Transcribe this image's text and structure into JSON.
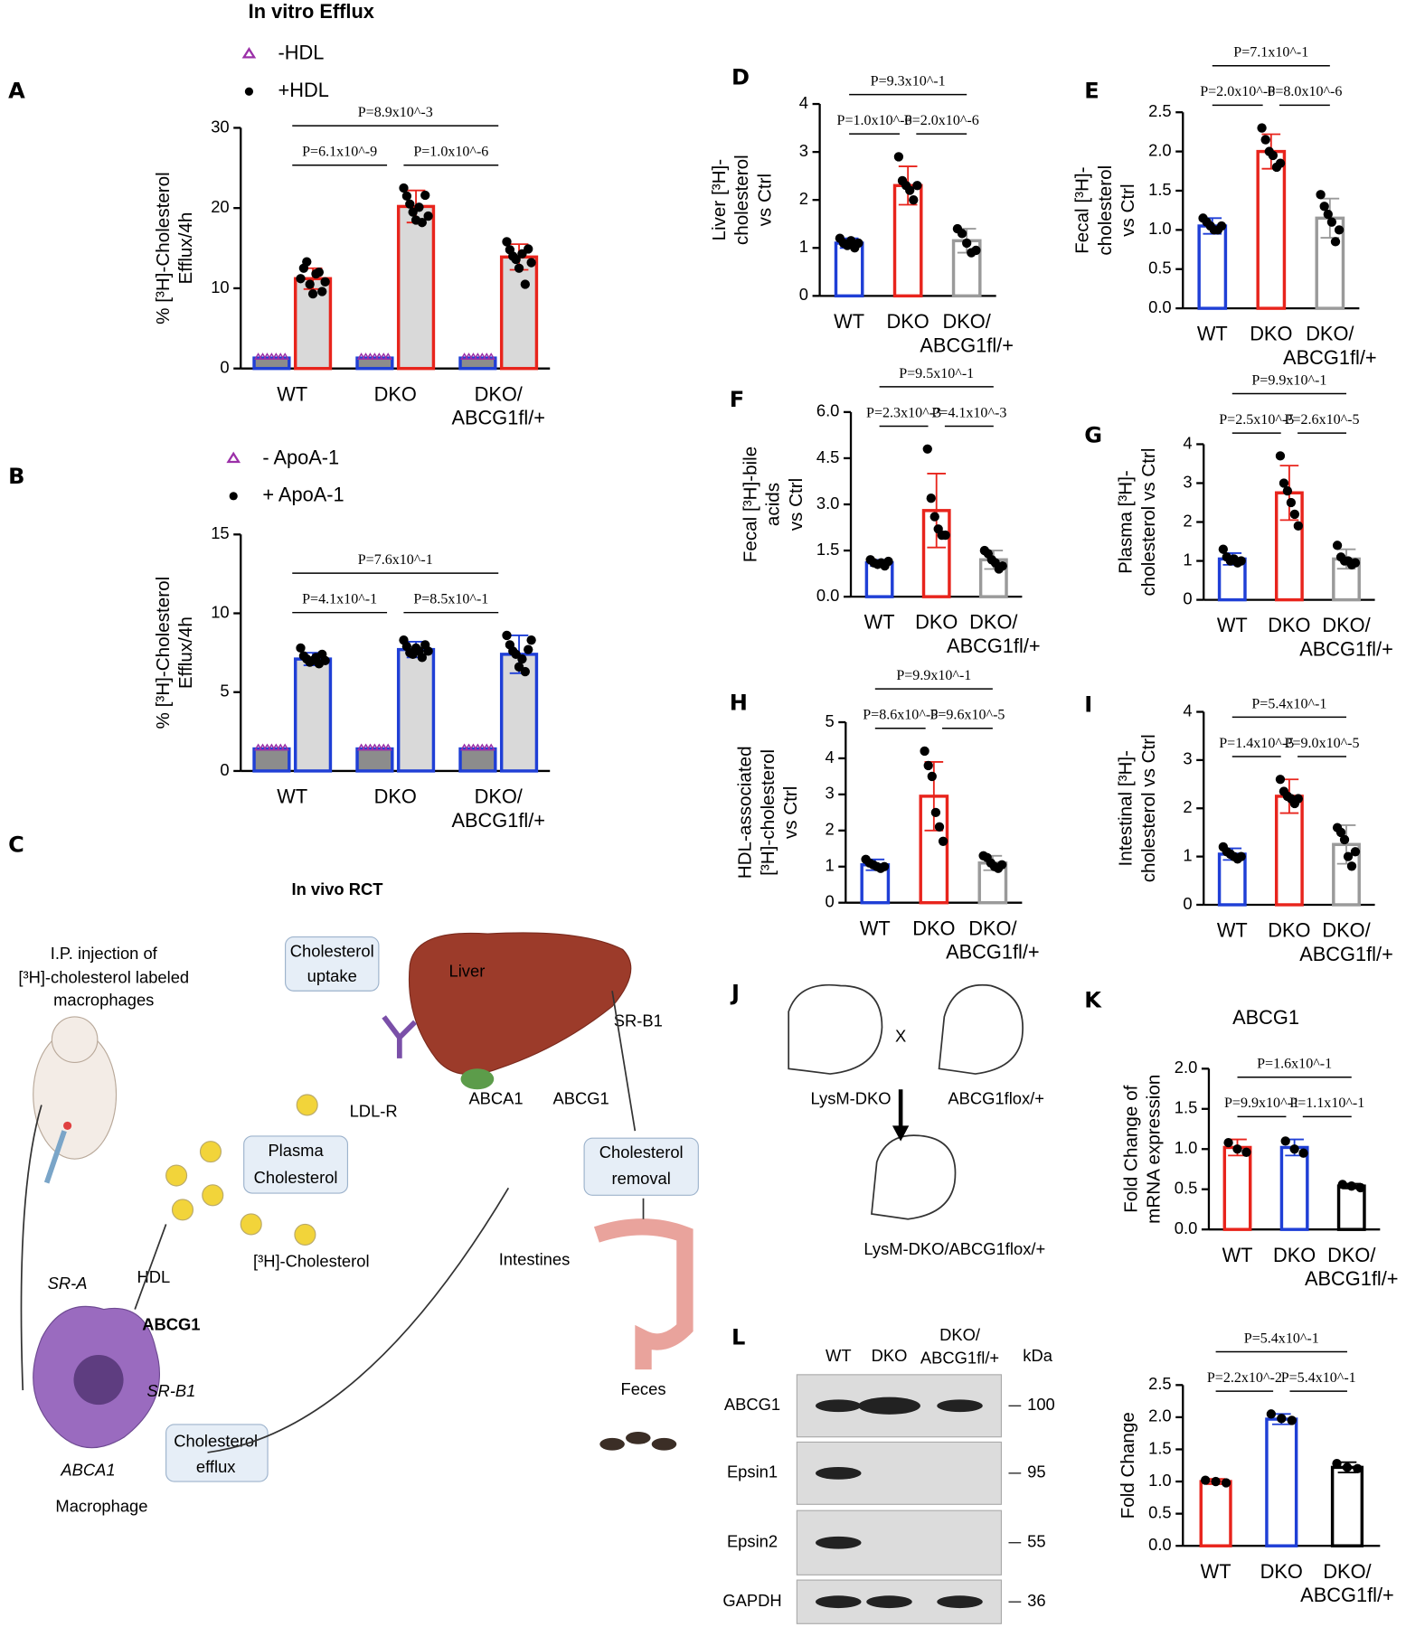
{
  "chart_data": [
    {
      "type": "bar",
      "panel": "A",
      "title": "In vitro Efflux",
      "ylabel": [
        "% [³H]-Cholesterol",
        "Efflux/4h"
      ],
      "categories": [
        [
          "WT"
        ],
        [
          "DKO"
        ],
        [
          "DKO/",
          "ABCG1fl/+"
        ]
      ],
      "ylim": [
        0,
        30
      ],
      "yticks": [
        0,
        10,
        20,
        30
      ],
      "series": [
        {
          "name": "-HDL",
          "label_color": "#000000",
          "marker": "triangle",
          "marker_color": "#9b30a8",
          "fill": "#8c8c8c",
          "colors": [
            "#1f3fd6",
            "#1f3fd6",
            "#1f3fd6"
          ],
          "values": [
            1.3,
            1.3,
            1.3
          ]
        },
        {
          "name": "+HDL",
          "label_color": "#e8241c",
          "marker": "dot",
          "marker_color": "#000000",
          "fill": "#d9d9d9",
          "colors": [
            "#e8241c",
            "#e8241c",
            "#e8241c"
          ],
          "values": [
            11.2,
            20.2,
            13.9
          ],
          "errors": [
            1.3,
            2.0,
            1.6
          ],
          "points": [
            [
              11.2,
              12.5,
              13.3,
              10.5,
              9.3,
              11.8,
              12.0,
              9.6,
              10.8
            ],
            [
              22.5,
              21.5,
              20.5,
              19.5,
              18.5,
              20.1,
              18.2,
              21.6,
              19.0
            ],
            [
              15.8,
              14.8,
              14.0,
              13.6,
              12.5,
              14.3,
              10.5,
              14.9,
              13.2
            ]
          ]
        }
      ],
      "pvalues": [
        "P=6.1x10^-9",
        "P=1.0x10^-6",
        "P=8.9x10^-3"
      ]
    },
    {
      "type": "bar",
      "panel": "B",
      "ylabel": [
        "% [³H]-Cholesterol",
        "Efflux/4h"
      ],
      "categories": [
        [
          "WT"
        ],
        [
          "DKO"
        ],
        [
          "DKO/",
          "ABCG1fl/+"
        ]
      ],
      "ylim": [
        0,
        15
      ],
      "yticks": [
        0,
        5,
        10,
        15
      ],
      "series": [
        {
          "name": "- ApoA-1",
          "label_color": "#000000",
          "marker": "triangle",
          "marker_color": "#9b30a8",
          "fill": "#8c8c8c",
          "colors": [
            "#1f3fd6",
            "#1f3fd6",
            "#1f3fd6"
          ],
          "values": [
            1.4,
            1.4,
            1.4
          ]
        },
        {
          "name": "+ ApoA-1",
          "label_color": "#1f3fd6",
          "marker": "dot",
          "marker_color": "#000000",
          "fill": "#d9d9d9",
          "colors": [
            "#1f3fd6",
            "#1f3fd6",
            "#1f3fd6"
          ],
          "values": [
            7.1,
            7.7,
            7.4
          ],
          "errors": [
            0.4,
            0.5,
            1.2
          ],
          "points": [
            [
              7.8,
              7.3,
              7.1,
              6.9,
              7.0,
              7.2,
              6.8,
              7.4,
              7.0
            ],
            [
              8.3,
              7.9,
              7.5,
              7.4,
              7.8,
              7.6,
              7.2,
              8.0,
              7.6
            ],
            [
              8.6,
              8.0,
              7.6,
              7.4,
              6.6,
              7.1,
              6.3,
              7.7,
              8.3
            ]
          ]
        }
      ],
      "pvalues": [
        "P=4.1x10^-1",
        "P=8.5x10^-1",
        "P=7.6x10^-1"
      ]
    },
    {
      "type": "bar",
      "panel": "D",
      "ylabel": [
        "Liver [³H]-",
        "cholesterol",
        "vs Ctrl"
      ],
      "categories": [
        [
          "WT"
        ],
        [
          "DKO"
        ],
        [
          "DKO/",
          "ABCG1fl/+"
        ]
      ],
      "ylim": [
        0,
        4
      ],
      "yticks": [
        0,
        1,
        2,
        3,
        4
      ],
      "series": [
        {
          "fill": "#ffffff",
          "colors": [
            "#1f3fd6",
            "#e8241c",
            "#9a9a9a"
          ],
          "values": [
            1.1,
            2.3,
            1.15
          ],
          "errors": [
            0.1,
            0.4,
            0.25
          ],
          "points": [
            [
              1.2,
              1.1,
              1.05,
              1.15,
              1.0,
              1.1
            ],
            [
              2.9,
              2.4,
              2.3,
              2.2,
              2.0,
              2.3
            ],
            [
              1.4,
              1.3,
              1.1,
              0.9,
              0.95
            ]
          ]
        }
      ],
      "pvalues": [
        "P=1.0x10^-6",
        "P=2.0x10^-6",
        "P=9.3x10^-1"
      ]
    },
    {
      "type": "bar",
      "panel": "E",
      "ylabel": [
        "Fecal [³H]-",
        "cholesterol",
        "vs Ctrl"
      ],
      "categories": [
        [
          "WT"
        ],
        [
          "DKO"
        ],
        [
          "DKO/",
          "ABCG1fl/+"
        ]
      ],
      "ylim": [
        0,
        2.5
      ],
      "yticks": [
        {
          "value": 0,
          "label": "0.0"
        },
        0.5,
        {
          "value": 1,
          "label": "1.0"
        },
        1.5,
        {
          "value": 2,
          "label": "2.0"
        },
        2.5
      ],
      "series": [
        {
          "fill": "#ffffff",
          "colors": [
            "#1f3fd6",
            "#e8241c",
            "#9a9a9a"
          ],
          "values": [
            1.05,
            2.0,
            1.15
          ],
          "errors": [
            0.1,
            0.22,
            0.25
          ],
          "points": [
            [
              1.15,
              1.1,
              1.05,
              1.0,
              1.0,
              1.05
            ],
            [
              2.3,
              2.15,
              2.0,
              1.95,
              1.8,
              1.85
            ],
            [
              1.45,
              1.3,
              1.2,
              1.1,
              0.85,
              1.0
            ]
          ]
        }
      ],
      "pvalues": [
        "P=2.0x10^-6",
        "P=8.0x10^-6",
        "P=7.1x10^-1"
      ]
    },
    {
      "type": "bar",
      "panel": "F",
      "ylabel": [
        "Fecal [³H]-bile",
        "acids",
        "vs Ctrl"
      ],
      "categories": [
        [
          "WT"
        ],
        [
          "DKO"
        ],
        [
          "DKO/",
          "ABCG1fl/+"
        ]
      ],
      "ylim": [
        0,
        6
      ],
      "yticks": [
        {
          "value": 0,
          "label": "0.0"
        },
        1.5,
        {
          "value": 3,
          "label": "3.0"
        },
        4.5,
        {
          "value": 6,
          "label": "6.0"
        }
      ],
      "series": [
        {
          "fill": "#ffffff",
          "colors": [
            "#1f3fd6",
            "#e8241c",
            "#9a9a9a"
          ],
          "values": [
            1.1,
            2.8,
            1.2
          ],
          "errors": [
            0.1,
            1.2,
            0.3
          ],
          "points": [
            [
              1.2,
              1.1,
              1.05,
              1.1,
              1.0,
              1.15
            ],
            [
              4.8,
              3.2,
              2.6,
              2.2,
              2.0,
              2.0
            ],
            [
              1.5,
              1.4,
              1.2,
              1.1,
              0.9,
              1.0
            ]
          ]
        }
      ],
      "pvalues": [
        "P=2.3x10^-3",
        "P=4.1x10^-3",
        "P=9.5x10^-1"
      ]
    },
    {
      "type": "bar",
      "panel": "G",
      "ylabel": [
        "Plasma  [³H]-",
        "cholesterol vs Ctrl"
      ],
      "categories": [
        [
          "WT"
        ],
        [
          "DKO"
        ],
        [
          "DKO/",
          "ABCG1fl/+"
        ]
      ],
      "ylim": [
        0,
        4
      ],
      "yticks": [
        0,
        1,
        2,
        3,
        4
      ],
      "series": [
        {
          "fill": "#ffffff",
          "colors": [
            "#1f3fd6",
            "#e8241c",
            "#9a9a9a"
          ],
          "values": [
            1.05,
            2.75,
            1.05
          ],
          "errors": [
            0.15,
            0.7,
            0.25
          ],
          "points": [
            [
              1.3,
              1.1,
              1.0,
              1.05,
              0.95,
              1.0
            ],
            [
              3.7,
              3.0,
              2.8,
              2.5,
              2.2,
              1.9
            ],
            [
              1.4,
              1.1,
              1.0,
              1.0,
              0.9,
              0.95
            ]
          ]
        }
      ],
      "pvalues": [
        "P=2.5x10^-5",
        "P=2.6x10^-5",
        "P=9.9x10^-1"
      ]
    },
    {
      "type": "bar",
      "panel": "H",
      "ylabel": [
        "HDL-associated",
        "[³H]-cholesterol",
        "vs Ctrl"
      ],
      "categories": [
        [
          "WT"
        ],
        [
          "DKO"
        ],
        [
          "DKO/",
          "ABCG1fl/+"
        ]
      ],
      "ylim": [
        0,
        5
      ],
      "yticks": [
        0,
        1,
        2,
        3,
        4,
        5
      ],
      "series": [
        {
          "fill": "#ffffff",
          "colors": [
            "#1f3fd6",
            "#e8241c",
            "#9a9a9a"
          ],
          "values": [
            1.05,
            2.95,
            1.1
          ],
          "errors": [
            0.15,
            0.95,
            0.2
          ],
          "points": [
            [
              1.2,
              1.1,
              1.05,
              1.0,
              0.95,
              1.0
            ],
            [
              4.2,
              3.8,
              3.5,
              2.5,
              2.1,
              1.7
            ],
            [
              1.3,
              1.25,
              1.1,
              1.0,
              0.95,
              1.05
            ]
          ]
        }
      ],
      "pvalues": [
        "P=8.6x10^-5",
        "P=9.6x10^-5",
        "P=9.9x10^-1"
      ]
    },
    {
      "type": "bar",
      "panel": "I",
      "ylabel": [
        "Intestinal [³H]-",
        "cholesterol vs Ctrl"
      ],
      "categories": [
        [
          "WT"
        ],
        [
          "DKO"
        ],
        [
          "DKO/",
          "ABCG1fl/+"
        ]
      ],
      "ylim": [
        0,
        4
      ],
      "yticks": [
        0,
        1,
        2,
        3,
        4
      ],
      "series": [
        {
          "fill": "#ffffff",
          "colors": [
            "#1f3fd6",
            "#e8241c",
            "#9a9a9a"
          ],
          "values": [
            1.05,
            2.25,
            1.25
          ],
          "errors": [
            0.12,
            0.35,
            0.4
          ],
          "points": [
            [
              1.2,
              1.1,
              1.05,
              1.0,
              0.95,
              1.0
            ],
            [
              2.6,
              2.35,
              2.25,
              2.2,
              2.1,
              2.2
            ],
            [
              1.6,
              1.5,
              1.35,
              1.0,
              0.8,
              1.1
            ]
          ]
        }
      ],
      "pvalues": [
        "P=1.4x10^-5",
        "P=9.0x10^-5",
        "P=5.4x10^-1"
      ]
    },
    {
      "type": "bar",
      "panel": "K",
      "title": "ABCG1",
      "ylabel": [
        "Fold Change  of",
        "mRNA expression"
      ],
      "categories": [
        [
          "WT"
        ],
        [
          "DKO"
        ],
        [
          "DKO/",
          "ABCG1fl/+"
        ]
      ],
      "ylim": [
        0,
        2
      ],
      "yticks": [
        {
          "value": 0,
          "label": "0.0"
        },
        0.5,
        {
          "value": 1,
          "label": "1.0"
        },
        1.5,
        {
          "value": 2,
          "label": "2.0"
        }
      ],
      "series": [
        {
          "fill": "#ffffff",
          "colors": [
            "#e8241c",
            "#1f3fd6",
            "#000000"
          ],
          "values": [
            1.02,
            1.02,
            0.54
          ],
          "errors": [
            0.1,
            0.1,
            0.03
          ],
          "points": [
            [
              1.08,
              1.0,
              0.96
            ],
            [
              1.1,
              1.0,
              0.95
            ],
            [
              0.56,
              0.54,
              0.52
            ]
          ]
        }
      ],
      "pvalues": [
        "P=9.9x10^-1",
        "P=1.1x10^-1",
        "P=1.6x10^-1"
      ]
    },
    {
      "type": "bar",
      "ylabel": [
        "Fold Change"
      ],
      "categories": [
        [
          "WT"
        ],
        [
          "DKO"
        ],
        [
          "DKO/",
          "ABCG1fl/+"
        ]
      ],
      "ylim": [
        0,
        2.5
      ],
      "yticks": [
        {
          "value": 0,
          "label": "0.0"
        },
        0.5,
        {
          "value": 1,
          "label": "1.0"
        },
        1.5,
        {
          "value": 2,
          "label": "2.0"
        },
        2.5
      ],
      "series": [
        {
          "fill": "#ffffff",
          "colors": [
            "#e8241c",
            "#1f3fd6",
            "#000000"
          ],
          "values": [
            1.0,
            1.97,
            1.22
          ],
          "errors": [
            0.04,
            0.08,
            0.08
          ],
          "points": [
            [
              1.02,
              1.0,
              0.98
            ],
            [
              2.05,
              1.98,
              1.95
            ],
            [
              1.28,
              1.22,
              1.2
            ]
          ]
        }
      ],
      "pvalues": [
        "P=2.2x10^-2",
        "P=5.4x10^-1",
        "P=5.4x10^-1"
      ]
    }
  ],
  "diagram_c": {
    "panel": "C",
    "title": "In vivo RCT",
    "injection": [
      "I.P. injection of",
      "[³H]-cholesterol labeled",
      "macrophages"
    ],
    "uptake": [
      "Cholesterol",
      "uptake"
    ],
    "liver": "Liver",
    "srb1_liver": "SR-B1",
    "ldlr": "LDL-R",
    "abca1_liver": "ABCA1",
    "abcg1_liver": "ABCG1",
    "plasma": [
      "Plasma",
      "Cholesterol"
    ],
    "labeled": "[³H]-Cholesterol",
    "hdl": "HDL",
    "sra": "SR-A",
    "abcg1_mac": "ABCG1",
    "srb1_mac": "SR-B1",
    "abca1_mac": "ABCA1",
    "macrophage": "Macrophage",
    "efflux": [
      "Cholesterol",
      "efflux"
    ],
    "removal": [
      "Cholesterol",
      "removal"
    ],
    "intestines": "Intestines",
    "feces": "Feces"
  },
  "diagram_j": {
    "panel": "J",
    "cross": "X",
    "parent1": "LysM-DKO",
    "parent2": "ABCG1flox/+",
    "offspring": "LysM-DKO/ABCG1flox/+"
  },
  "blot": {
    "panel": "L",
    "lanes": [
      "WT",
      "DKO",
      [
        "DKO/",
        "ABCG1fl/+"
      ]
    ],
    "unit": "kDa",
    "rows": [
      {
        "label": "ABCG1",
        "kda": "100"
      },
      {
        "label": "Epsin1",
        "kda": "95"
      },
      {
        "label": "Epsin2",
        "kda": "55"
      },
      {
        "label": "GAPDH",
        "kda": "36"
      }
    ]
  }
}
